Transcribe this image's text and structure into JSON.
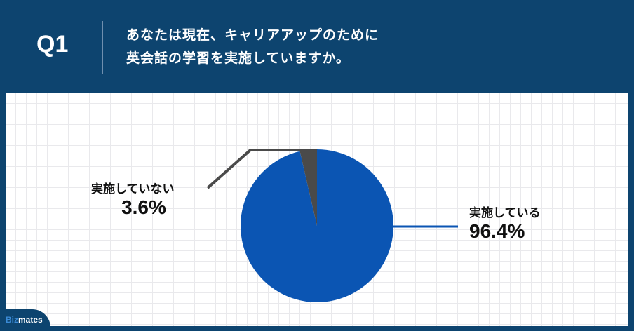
{
  "header": {
    "question_number": "Q1",
    "question_line1": "あなたは現在、キャリアアップのために",
    "question_line2": "英会話の学習を実施していますか。"
  },
  "labels": {
    "yes_name": "実施している",
    "yes_value": "96.4%",
    "no_name": "実施していない",
    "no_value": "3.6%"
  },
  "logo": {
    "biz": "Biz",
    "mates": "mates"
  },
  "colors": {
    "background": "#0d446f",
    "yes": "#0b55b3",
    "no": "#4a4a4a"
  },
  "chart_data": {
    "type": "pie",
    "title": "あなたは現在、キャリアアップのために英会話の学習を実施していますか。",
    "categories": [
      "実施している",
      "実施していない"
    ],
    "values": [
      96.4,
      3.6
    ],
    "colors": [
      "#0b55b3",
      "#4a4a4a"
    ],
    "legend": "none (direct labels)"
  }
}
